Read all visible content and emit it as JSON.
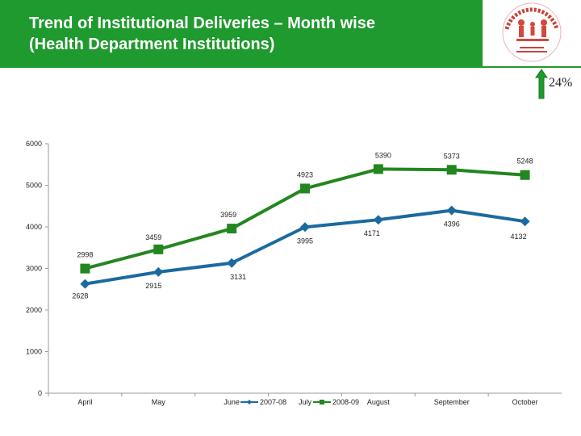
{
  "header": {
    "title_line1": "Trend of Institutional Deliveries – Month wise",
    "title_line2": "(Health Department Institutions)",
    "background_color": "#1f9a2e",
    "logo_icon": "national-rural-health-mission-logo"
  },
  "growth": {
    "label": "24%",
    "icon": "up-arrow-icon",
    "color": "#1f9a2e"
  },
  "chart_data": {
    "type": "line",
    "categories": [
      "April",
      "May",
      "June",
      "July",
      "August",
      "September",
      "October"
    ],
    "series": [
      {
        "name": "2007-08",
        "color": "#1a6aa0",
        "marker": "diamond",
        "values": [
          2628,
          2915,
          3131,
          3995,
          4171,
          4396,
          4132
        ]
      },
      {
        "name": "2008-09",
        "color": "#23861f",
        "marker": "square",
        "values": [
          2998,
          3459,
          3959,
          4923,
          5390,
          5373,
          5248
        ]
      }
    ],
    "y_ticks": [
      0,
      1000,
      2000,
      3000,
      4000,
      5000,
      6000
    ],
    "ylim": [
      0,
      6000
    ],
    "legend": "bottom",
    "grid": false
  }
}
